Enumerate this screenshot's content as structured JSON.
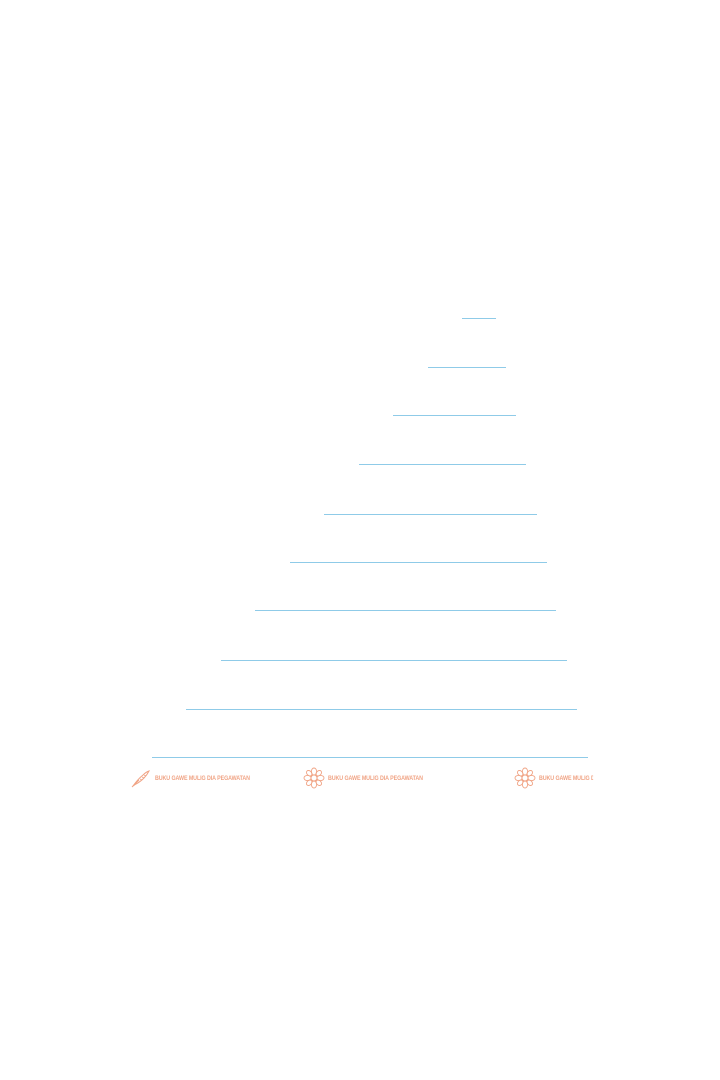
{
  "page": {
    "writing_lines_count": 10
  },
  "footer": {
    "items": [
      {
        "icon": "quill-pen-icon",
        "text": "Buku Gawe Mulig Dia Pegawatan"
      },
      {
        "icon": "flower-ornament-icon",
        "text": "Buku Gawe Mulig Dia Pegawatan"
      },
      {
        "icon": "flower-ornament-icon",
        "text": "Buku Gawe Mulig Dia P"
      }
    ],
    "colors": {
      "line": "#8fcbe8",
      "footer": "#f0a384"
    }
  }
}
